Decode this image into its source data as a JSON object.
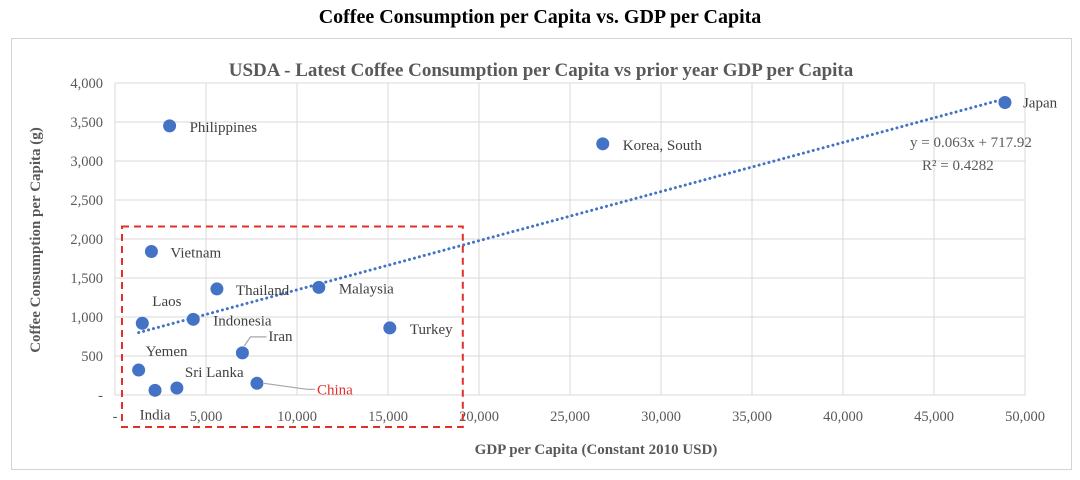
{
  "page_title": "Coffee Consumption per Capita vs. GDP per Capita",
  "chart_data": {
    "type": "scatter",
    "title": "USDA - Latest Coffee Consumption per Capita vs prior year GDP per Capita",
    "xlabel": "GDP per Capita (Constant 2010 USD)",
    "ylabel": "Coffee Consumption per Capita (g)",
    "xlim": [
      0,
      50000
    ],
    "ylim": [
      0,
      4000
    ],
    "x_ticks": [
      "-",
      "5,000",
      "10,000",
      "15,000",
      "20,000",
      "25,000",
      "30,000",
      "35,000",
      "40,000",
      "45,000",
      "50,000"
    ],
    "y_ticks": [
      "-",
      "500",
      "1,000",
      "1,500",
      "2,000",
      "2,500",
      "3,000",
      "3,500",
      "4,000"
    ],
    "grid": "vertical and horizontal",
    "marker_color": "#4472c4",
    "highlight_color": "#e0302a",
    "points": [
      {
        "label": "Japan",
        "x": 48900,
        "y": 3750
      },
      {
        "label": "Korea, South",
        "x": 26800,
        "y": 3220
      },
      {
        "label": "Philippines",
        "x": 3000,
        "y": 3450
      },
      {
        "label": "Vietnam",
        "x": 2000,
        "y": 1840
      },
      {
        "label": "Thailand",
        "x": 5600,
        "y": 1360
      },
      {
        "label": "Malaysia",
        "x": 11200,
        "y": 1380
      },
      {
        "label": "Laos",
        "x": 1500,
        "y": 920
      },
      {
        "label": "Indonesia",
        "x": 4300,
        "y": 970
      },
      {
        "label": "Turkey",
        "x": 15100,
        "y": 860
      },
      {
        "label": "Iran",
        "x": 7000,
        "y": 540
      },
      {
        "label": "Yemen",
        "x": 1300,
        "y": 320
      },
      {
        "label": "Sri Lanka",
        "x": 3400,
        "y": 90
      },
      {
        "label": "India",
        "x": 2200,
        "y": 60
      },
      {
        "label": "China",
        "x": 7800,
        "y": 150
      }
    ],
    "trendline": {
      "style": "dotted",
      "slope": 0.063,
      "intercept": 717.92,
      "x_range": [
        1300,
        48900
      ],
      "equation": "y = 0.063x + 717.92",
      "r_squared": "R² = 0.4282"
    },
    "highlight_box": {
      "style": "dashed",
      "color": "#e0302a",
      "x_range": [
        0,
        19000
      ],
      "y_range": [
        -410,
        2160
      ]
    }
  }
}
